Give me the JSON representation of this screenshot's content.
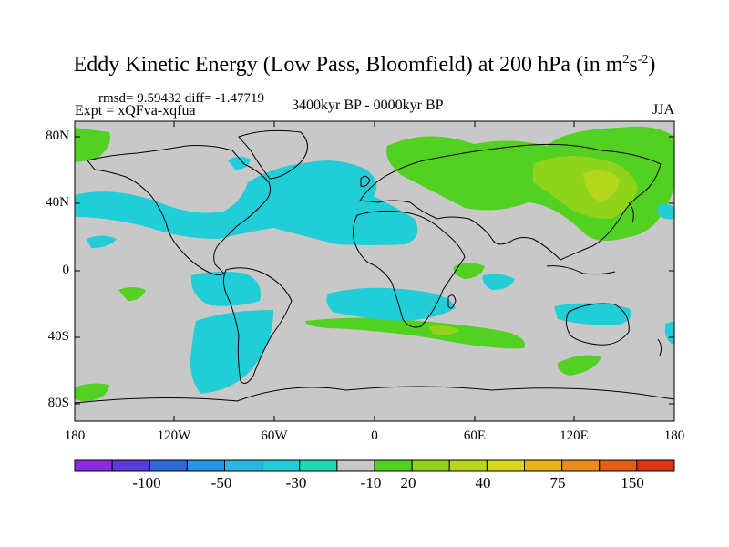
{
  "title": {
    "main": "Eddy Kinetic Energy (Low Pass, Bloomfield) at 200 hPa (in m",
    "sup1": "2",
    "mid": "s",
    "sup2": "-2",
    "end": ")"
  },
  "stats": "rmsd= 9.59432 diff= -1.47719",
  "expt": "Expt = xQFva-xqfua",
  "period": "3400kyr BP - 0000kyr BP",
  "season": "JJA",
  "axes": {
    "lat_labels": [
      "80N",
      "40N",
      "0",
      "40S",
      "80S"
    ],
    "lon_labels": [
      "180",
      "120W",
      "60W",
      "0",
      "60E",
      "120E",
      "180"
    ]
  },
  "colorbar": {
    "colors": [
      "#8a2be2",
      "#5a3ad8",
      "#2f6ad8",
      "#2496e6",
      "#2cb7e3",
      "#21cdd6",
      "#1fd9b4",
      "#c8c8c8",
      "#52d122",
      "#8fd41a",
      "#b6d619",
      "#d9d61c",
      "#e9b21a",
      "#ea8a19",
      "#e35f17",
      "#dc3510"
    ],
    "labels": [
      "-100",
      "-50",
      "-30",
      "-10",
      "20",
      "40",
      "75",
      "150"
    ]
  },
  "map_colors": {
    "land_fill": "#c8c8c8",
    "negative_anomaly": "#21cdd6",
    "positive_anomaly": "#52d122",
    "positive_strong": "#8fd41a",
    "positive_peak": "#b6d619"
  }
}
